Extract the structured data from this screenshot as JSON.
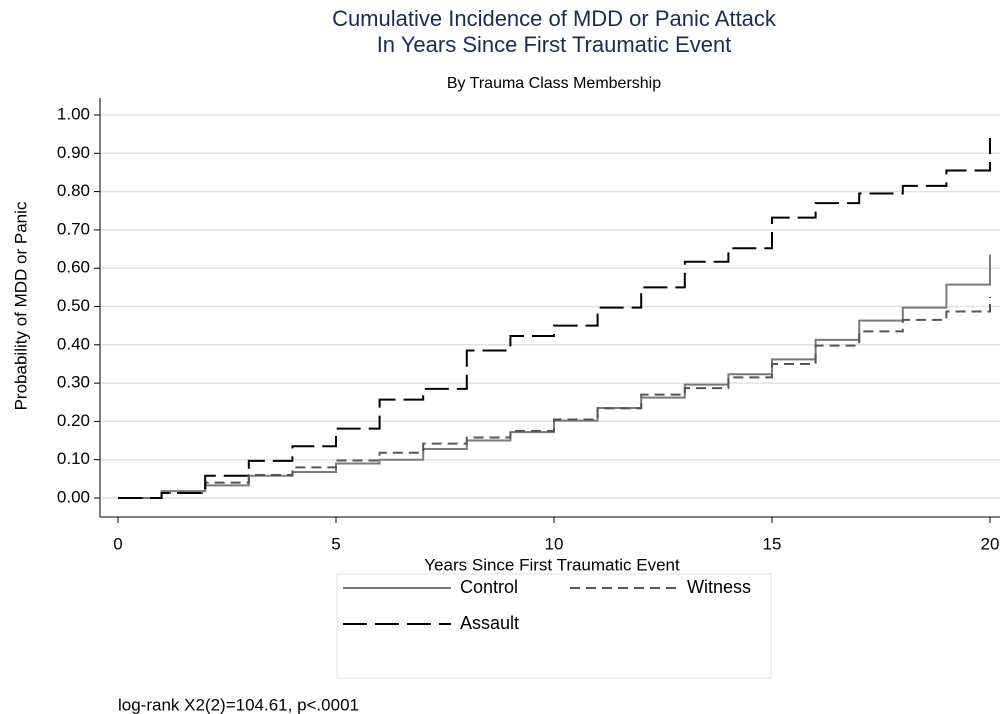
{
  "chart_data": {
    "type": "step",
    "title": "Cumulative Incidence of MDD or Panic Attack",
    "title_line2": "In Years Since First Traumatic Event",
    "subtitle": "By Trauma Class Membership",
    "x_label": "Years Since First Traumatic Event",
    "y_label": "Probability of MDD or Panic",
    "note": "log-rank X2(2)=104.61, p<.0001",
    "x": [
      0,
      1,
      2,
      3,
      4,
      5,
      6,
      7,
      8,
      9,
      10,
      11,
      12,
      13,
      14,
      15,
      16,
      17,
      18,
      19,
      20
    ],
    "series": [
      {
        "name": "Control",
        "color": "#7a7a7a",
        "dash": "none",
        "values": [
          0,
          0.018,
          0.033,
          0.058,
          0.068,
          0.09,
          0.1,
          0.128,
          0.15,
          0.172,
          0.202,
          0.235,
          0.262,
          0.296,
          0.323,
          0.362,
          0.413,
          0.463,
          0.497,
          0.557,
          0.635
        ]
      },
      {
        "name": "Witness",
        "color": "#555555",
        "dash": "10 6",
        "values": [
          0,
          0.013,
          0.04,
          0.06,
          0.08,
          0.098,
          0.118,
          0.142,
          0.158,
          0.175,
          0.205,
          0.234,
          0.27,
          0.287,
          0.315,
          0.35,
          0.398,
          0.435,
          0.465,
          0.487,
          0.525
        ]
      },
      {
        "name": "Assault",
        "color": "#000000",
        "dash": "24 8",
        "values": [
          0,
          0.013,
          0.058,
          0.097,
          0.135,
          0.181,
          0.257,
          0.285,
          0.385,
          0.423,
          0.45,
          0.497,
          0.55,
          0.617,
          0.652,
          0.732,
          0.77,
          0.795,
          0.815,
          0.855,
          0.94
        ]
      }
    ],
    "xlim": [
      0,
      20
    ],
    "xticks": [
      0,
      5,
      10,
      15,
      20
    ],
    "ylim": [
      0,
      1
    ],
    "yticks": [
      {
        "value": 0,
        "label": "0.00"
      },
      {
        "value": 0.1,
        "label": "0.10"
      },
      {
        "value": 0.2,
        "label": "0.20"
      },
      {
        "value": 0.3,
        "label": "0.30"
      },
      {
        "value": 0.4,
        "label": "0.40"
      },
      {
        "value": 0.5,
        "label": "0.50"
      },
      {
        "value": 0.6,
        "label": "0.60"
      },
      {
        "value": 0.7,
        "label": "0.70"
      },
      {
        "value": 0.8,
        "label": "0.80"
      },
      {
        "value": 0.9,
        "label": "0.90"
      },
      {
        "value": 1,
        "label": "1.00"
      }
    ],
    "grid": true
  }
}
